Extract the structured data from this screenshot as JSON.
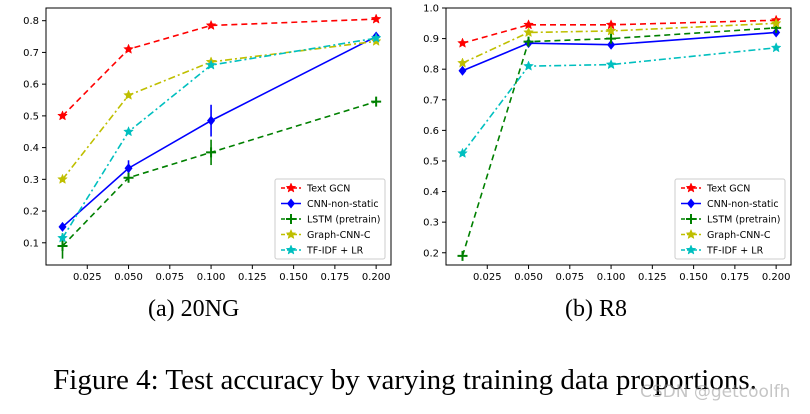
{
  "figure": {
    "caption": "Figure 4: Test accuracy by varying training data proportions.",
    "watermark": "CSDN @getcoolfh"
  },
  "legend_labels": [
    "Text GCN",
    "CNN-non-static",
    "LSTM (pretrain)",
    "Graph-CNN-C",
    "TF-IDF + LR"
  ],
  "colors": {
    "Text GCN": "#ff0000",
    "CNN-non-static": "#0000ff",
    "LSTM (pretrain)": "#008000",
    "Graph-CNN-C": "#bfbf00",
    "TF-IDF + LR": "#00bfbf"
  },
  "chart_data": [
    {
      "type": "line",
      "panel_label": "(a)  20NG",
      "x": [
        0.01,
        0.05,
        0.1,
        0.2
      ],
      "xticks": [
        "0.025",
        "0.050",
        "0.075",
        "0.100",
        "0.125",
        "0.150",
        "0.175",
        "0.200"
      ],
      "yticks": [
        "0.1",
        "0.2",
        "0.3",
        "0.4",
        "0.5",
        "0.6",
        "0.7",
        "0.8"
      ],
      "xlim": [
        0.0,
        0.209
      ],
      "ylim": [
        0.03,
        0.84
      ],
      "grid": false,
      "legend_position": "lower-right",
      "series": [
        {
          "name": "Text GCN",
          "values": [
            0.5,
            0.71,
            0.785,
            0.805
          ],
          "err": [
            0,
            0,
            0,
            0
          ],
          "marker": "star",
          "linestyle": "dashed"
        },
        {
          "name": "CNN-non-static",
          "values": [
            0.15,
            0.335,
            0.485,
            0.75
          ],
          "err": [
            0.01,
            0.025,
            0.05,
            0.005
          ],
          "marker": "diamond",
          "linestyle": "solid"
        },
        {
          "name": "LSTM (pretrain)",
          "values": [
            0.09,
            0.305,
            0.385,
            0.545
          ],
          "err": [
            0.04,
            0.01,
            0.04,
            0.005
          ],
          "marker": "plus",
          "linestyle": "dashed"
        },
        {
          "name": "Graph-CNN-C",
          "values": [
            0.3,
            0.565,
            0.67,
            0.735
          ],
          "err": [
            0,
            0,
            0,
            0
          ],
          "marker": "star",
          "linestyle": "dashdot"
        },
        {
          "name": "TF-IDF + LR",
          "values": [
            0.115,
            0.45,
            0.66,
            0.745
          ],
          "err": [
            0,
            0,
            0,
            0
          ],
          "marker": "star",
          "linestyle": "dashdot"
        }
      ]
    },
    {
      "type": "line",
      "panel_label": "(b)  R8",
      "x": [
        0.01,
        0.05,
        0.1,
        0.2
      ],
      "xticks": [
        "0.025",
        "0.050",
        "0.075",
        "0.100",
        "0.125",
        "0.150",
        "0.175",
        "0.200"
      ],
      "yticks": [
        "0.2",
        "0.3",
        "0.4",
        "0.5",
        "0.6",
        "0.7",
        "0.8",
        "0.9",
        "1.0"
      ],
      "xlim": [
        0.0,
        0.209
      ],
      "ylim": [
        0.16,
        1.0
      ],
      "grid": false,
      "legend_position": "lower-right",
      "series": [
        {
          "name": "Text GCN",
          "values": [
            0.885,
            0.945,
            0.945,
            0.96
          ],
          "err": [
            0,
            0,
            0,
            0
          ],
          "marker": "star",
          "linestyle": "dashed"
        },
        {
          "name": "CNN-non-static",
          "values": [
            0.795,
            0.885,
            0.88,
            0.92
          ],
          "err": [
            0.01,
            0.01,
            0.005,
            0.005
          ],
          "marker": "diamond",
          "linestyle": "solid"
        },
        {
          "name": "LSTM (pretrain)",
          "values": [
            0.19,
            0.89,
            0.9,
            0.935
          ],
          "err": [
            0.01,
            0.01,
            0.005,
            0.005
          ],
          "marker": "plus",
          "linestyle": "dashed"
        },
        {
          "name": "Graph-CNN-C",
          "values": [
            0.82,
            0.92,
            0.925,
            0.95
          ],
          "err": [
            0,
            0,
            0,
            0
          ],
          "marker": "star",
          "linestyle": "dashdot"
        },
        {
          "name": "TF-IDF + LR",
          "values": [
            0.525,
            0.81,
            0.815,
            0.87
          ],
          "err": [
            0,
            0,
            0,
            0
          ],
          "marker": "star",
          "linestyle": "dashdot"
        }
      ]
    }
  ]
}
